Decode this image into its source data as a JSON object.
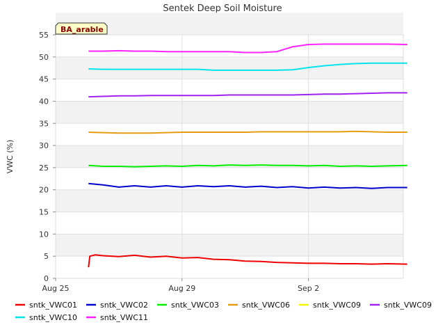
{
  "chart_data": {
    "type": "line",
    "title": "Sentek Deep Soil Moisture",
    "xlabel": "",
    "ylabel": "VWC (%)",
    "site_label": "BA_arable",
    "xlim": [
      "2024-08-25",
      "2024-09-05"
    ],
    "ylim": [
      0,
      55
    ],
    "y_ticks": [
      0,
      5,
      10,
      15,
      20,
      25,
      30,
      35,
      40,
      45,
      50,
      55
    ],
    "x_ticks": [
      {
        "label": "Aug 25",
        "date": "2024-08-25"
      },
      {
        "label": "Aug 29",
        "date": "2024-08-29"
      },
      {
        "label": "Sep 2",
        "date": "2024-09-02"
      }
    ],
    "grid": true,
    "bands": "alternating grey",
    "legend_placement": "bottom",
    "series": [
      {
        "name": "sntk_VWC01",
        "color": "#ee0000",
        "x": [
          "2024-08-26T01:00",
          "2024-08-26T02:00",
          "2024-08-26T06:00",
          "2024-08-26T12:00",
          "2024-08-27T00:00",
          "2024-08-27T12:00",
          "2024-08-28T00:00",
          "2024-08-28T12:00",
          "2024-08-29T00:00",
          "2024-08-29T12:00",
          "2024-08-30T00:00",
          "2024-08-30T12:00",
          "2024-08-31T00:00",
          "2024-08-31T12:00",
          "2024-09-01T00:00",
          "2024-09-01T12:00",
          "2024-09-02T00:00",
          "2024-09-02T12:00",
          "2024-09-03T00:00",
          "2024-09-03T12:00",
          "2024-09-04T00:00",
          "2024-09-04T12:00",
          "2024-09-05T03:00"
        ],
        "y": [
          2.5,
          5.0,
          5.3,
          5.1,
          4.9,
          5.2,
          4.8,
          5.0,
          4.6,
          4.7,
          4.3,
          4.2,
          3.9,
          3.8,
          3.6,
          3.5,
          3.4,
          3.4,
          3.3,
          3.3,
          3.2,
          3.3,
          3.2
        ]
      },
      {
        "name": "sntk_VWC02",
        "color": "#0000cc",
        "x": [
          "2024-08-26T01:00",
          "2024-08-26T12:00",
          "2024-08-27T00:00",
          "2024-08-27T12:00",
          "2024-08-28T00:00",
          "2024-08-28T12:00",
          "2024-08-29T00:00",
          "2024-08-29T12:00",
          "2024-08-30T00:00",
          "2024-08-30T12:00",
          "2024-08-31T00:00",
          "2024-08-31T12:00",
          "2024-09-01T00:00",
          "2024-09-01T12:00",
          "2024-09-02T00:00",
          "2024-09-02T12:00",
          "2024-09-03T00:00",
          "2024-09-03T12:00",
          "2024-09-04T00:00",
          "2024-09-04T12:00",
          "2024-09-05T03:00"
        ],
        "y": [
          21.4,
          21.1,
          20.6,
          20.9,
          20.6,
          20.9,
          20.6,
          20.9,
          20.7,
          20.9,
          20.6,
          20.8,
          20.5,
          20.7,
          20.4,
          20.6,
          20.4,
          20.5,
          20.3,
          20.5,
          20.5
        ]
      },
      {
        "name": "sntk_VWC03",
        "color": "#00ee00",
        "x": [
          "2024-08-26T01:00",
          "2024-08-26T12:00",
          "2024-08-27T00:00",
          "2024-08-27T12:00",
          "2024-08-28T00:00",
          "2024-08-28T12:00",
          "2024-08-29T00:00",
          "2024-08-29T12:00",
          "2024-08-30T00:00",
          "2024-08-30T12:00",
          "2024-08-31T00:00",
          "2024-08-31T12:00",
          "2024-09-01T00:00",
          "2024-09-01T12:00",
          "2024-09-02T00:00",
          "2024-09-02T12:00",
          "2024-09-03T00:00",
          "2024-09-03T12:00",
          "2024-09-04T00:00",
          "2024-09-04T12:00",
          "2024-09-05T03:00"
        ],
        "y": [
          25.5,
          25.3,
          25.3,
          25.2,
          25.3,
          25.4,
          25.3,
          25.5,
          25.4,
          25.6,
          25.5,
          25.6,
          25.5,
          25.5,
          25.4,
          25.5,
          25.3,
          25.4,
          25.3,
          25.4,
          25.5
        ]
      },
      {
        "name": "sntk_VWC06",
        "color": "#e59c10",
        "x": [
          "2024-08-26T01:00",
          "2024-08-26T12:00",
          "2024-08-27T00:00",
          "2024-08-27T12:00",
          "2024-08-28T00:00",
          "2024-08-28T12:00",
          "2024-08-29T00:00",
          "2024-08-29T12:00",
          "2024-08-30T00:00",
          "2024-08-30T12:00",
          "2024-08-31T00:00",
          "2024-08-31T12:00",
          "2024-09-01T00:00",
          "2024-09-01T12:00",
          "2024-09-02T00:00",
          "2024-09-02T12:00",
          "2024-09-03T00:00",
          "2024-09-03T12:00",
          "2024-09-04T00:00",
          "2024-09-04T12:00",
          "2024-09-05T03:00"
        ],
        "y": [
          33.0,
          32.9,
          32.8,
          32.8,
          32.8,
          32.9,
          33.0,
          33.0,
          33.0,
          33.0,
          33.0,
          33.1,
          33.1,
          33.1,
          33.1,
          33.1,
          33.1,
          33.2,
          33.1,
          33.0,
          33.0
        ]
      },
      {
        "name": "sntk_VWC09",
        "color": "#f5f500",
        "x": [],
        "y": []
      },
      {
        "name": "sntk_VWC09",
        "color": "#a020f0",
        "x": [
          "2024-08-26T01:00",
          "2024-08-26T12:00",
          "2024-08-27T00:00",
          "2024-08-27T12:00",
          "2024-08-28T00:00",
          "2024-08-28T12:00",
          "2024-08-29T00:00",
          "2024-08-29T12:00",
          "2024-08-30T00:00",
          "2024-08-30T12:00",
          "2024-08-31T00:00",
          "2024-08-31T12:00",
          "2024-09-01T00:00",
          "2024-09-01T12:00",
          "2024-09-02T00:00",
          "2024-09-02T12:00",
          "2024-09-03T00:00",
          "2024-09-03T12:00",
          "2024-09-04T00:00",
          "2024-09-04T12:00",
          "2024-09-05T03:00"
        ],
        "y": [
          41.0,
          41.1,
          41.2,
          41.2,
          41.3,
          41.3,
          41.3,
          41.3,
          41.3,
          41.4,
          41.4,
          41.4,
          41.4,
          41.4,
          41.5,
          41.6,
          41.6,
          41.7,
          41.8,
          41.9,
          41.9
        ]
      },
      {
        "name": "sntk_VWC10",
        "color": "#00e5ee",
        "x": [
          "2024-08-26T01:00",
          "2024-08-26T12:00",
          "2024-08-27T00:00",
          "2024-08-27T12:00",
          "2024-08-28T00:00",
          "2024-08-28T12:00",
          "2024-08-29T00:00",
          "2024-08-29T12:00",
          "2024-08-30T00:00",
          "2024-08-30T12:00",
          "2024-08-31T00:00",
          "2024-08-31T12:00",
          "2024-09-01T00:00",
          "2024-09-01T12:00",
          "2024-09-02T00:00",
          "2024-09-02T12:00",
          "2024-09-03T00:00",
          "2024-09-03T12:00",
          "2024-09-04T00:00",
          "2024-09-04T12:00",
          "2024-09-05T03:00"
        ],
        "y": [
          47.3,
          47.2,
          47.2,
          47.2,
          47.2,
          47.2,
          47.2,
          47.2,
          47.0,
          47.0,
          47.0,
          47.0,
          47.0,
          47.1,
          47.6,
          48.0,
          48.3,
          48.5,
          48.6,
          48.6,
          48.6
        ]
      },
      {
        "name": "sntk_VWC11",
        "color": "#ff22ff",
        "x": [
          "2024-08-26T01:00",
          "2024-08-26T12:00",
          "2024-08-27T00:00",
          "2024-08-27T12:00",
          "2024-08-28T00:00",
          "2024-08-28T12:00",
          "2024-08-29T00:00",
          "2024-08-29T12:00",
          "2024-08-30T00:00",
          "2024-08-30T12:00",
          "2024-08-31T00:00",
          "2024-08-31T12:00",
          "2024-09-01T00:00",
          "2024-09-01T12:00",
          "2024-09-02T00:00",
          "2024-09-02T12:00",
          "2024-09-03T00:00",
          "2024-09-03T12:00",
          "2024-09-04T00:00",
          "2024-09-04T12:00",
          "2024-09-05T03:00"
        ],
        "y": [
          51.3,
          51.3,
          51.4,
          51.3,
          51.3,
          51.2,
          51.2,
          51.2,
          51.2,
          51.2,
          51.0,
          51.0,
          51.2,
          52.3,
          52.8,
          52.9,
          52.9,
          52.9,
          52.9,
          52.9,
          52.8
        ]
      }
    ]
  }
}
